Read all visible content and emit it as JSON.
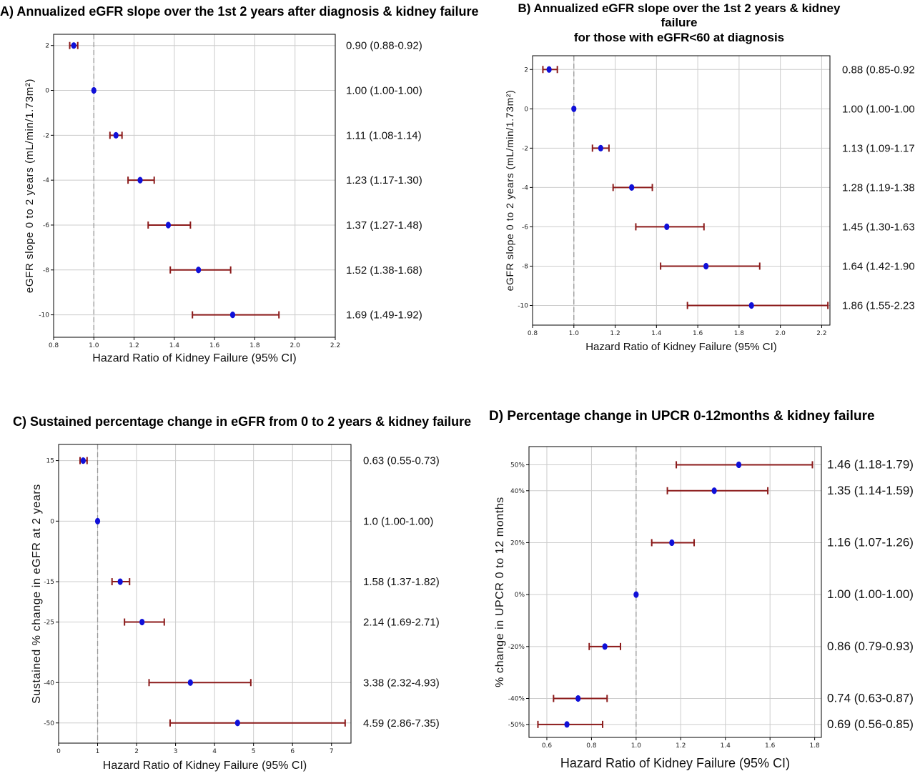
{
  "chart_data": [
    {
      "panel": "A",
      "type": "forest",
      "title": "A) Annualized eGFR slope over the 1st 2 years after diagnosis & kidney failure",
      "xlabel": "Hazard Ratio of Kidney Failure (95% CI)",
      "ylabel": "eGFR slope 0 to 2 years (mL/min/1.73m²)",
      "xlim": [
        0.8,
        2.2
      ],
      "xticks": [
        "0.8",
        "1.0",
        "1.2",
        "1.4",
        "1.6",
        "1.8",
        "2.0",
        "2.2"
      ],
      "ylim": [
        -11,
        2.5
      ],
      "reference_line": 1.0,
      "grid": true,
      "points": [
        {
          "y": 2,
          "ytick": "2",
          "hr": 0.9,
          "lo": 0.88,
          "hi": 0.92,
          "label": "0.90 (0.88-0.92)"
        },
        {
          "y": 0,
          "ytick": "0",
          "hr": 1.0,
          "lo": 1.0,
          "hi": 1.0,
          "label": "1.00 (1.00-1.00)"
        },
        {
          "y": -2,
          "ytick": "-2",
          "hr": 1.11,
          "lo": 1.08,
          "hi": 1.14,
          "label": "1.11 (1.08-1.14)"
        },
        {
          "y": -4,
          "ytick": "-4",
          "hr": 1.23,
          "lo": 1.17,
          "hi": 1.3,
          "label": "1.23 (1.17-1.30)"
        },
        {
          "y": -6,
          "ytick": "-6",
          "hr": 1.37,
          "lo": 1.27,
          "hi": 1.48,
          "label": "1.37 (1.27-1.48)"
        },
        {
          "y": -8,
          "ytick": "-8",
          "hr": 1.52,
          "lo": 1.38,
          "hi": 1.68,
          "label": "1.52 (1.38-1.68)"
        },
        {
          "y": -10,
          "ytick": "-10",
          "hr": 1.69,
          "lo": 1.49,
          "hi": 1.92,
          "label": "1.69 (1.49-1.92)"
        }
      ]
    },
    {
      "panel": "B",
      "type": "forest",
      "title": "B) Annualized eGFR slope over the 1st 2 years & kidney failure",
      "subtitle": "for those with eGFR<60 at diagnosis",
      "xlabel": "Hazard Ratio of Kidney Failure (95% CI)",
      "ylabel": "eGFR slope 0 to 2 years (mL/min/1.73m²)",
      "xlim": [
        0.8,
        2.24
      ],
      "xticks": [
        "0.8",
        "1.0",
        "1.2",
        "1.4",
        "1.6",
        "1.8",
        "2.0",
        "2.2"
      ],
      "ylim": [
        -11,
        2.7
      ],
      "reference_line": 1.0,
      "grid": true,
      "points": [
        {
          "y": 2,
          "ytick": "2",
          "hr": 0.88,
          "lo": 0.85,
          "hi": 0.92,
          "label": "0.88 (0.85-0.92)"
        },
        {
          "y": 0,
          "ytick": "0",
          "hr": 1.0,
          "lo": 1.0,
          "hi": 1.0,
          "label": "1.00 (1.00-1.00)"
        },
        {
          "y": -2,
          "ytick": "-2",
          "hr": 1.13,
          "lo": 1.09,
          "hi": 1.17,
          "label": "1.13 (1.09-1.17)"
        },
        {
          "y": -4,
          "ytick": "-4",
          "hr": 1.28,
          "lo": 1.19,
          "hi": 1.38,
          "label": "1.28 (1.19-1.38)"
        },
        {
          "y": -6,
          "ytick": "-6",
          "hr": 1.45,
          "lo": 1.3,
          "hi": 1.63,
          "label": "1.45 (1.30-1.63)"
        },
        {
          "y": -8,
          "ytick": "-8",
          "hr": 1.64,
          "lo": 1.42,
          "hi": 1.9,
          "label": "1.64 (1.42-1.90)"
        },
        {
          "y": -10,
          "ytick": "-10",
          "hr": 1.86,
          "lo": 1.55,
          "hi": 2.23,
          "label": "1.86 (1.55-2.23)"
        }
      ]
    },
    {
      "panel": "C",
      "type": "forest",
      "title": "C) Sustained percentage change in eGFR from 0 to 2 years & kidney failure",
      "xlabel": "Hazard Ratio of Kidney Failure (95% CI)",
      "ylabel": "Sustained % change in eGFR at 2 years",
      "xlim": [
        0,
        7.5
      ],
      "xticks": [
        "0",
        "1",
        "2",
        "3",
        "4",
        "5",
        "6",
        "7"
      ],
      "ylim": [
        -55,
        19
      ],
      "reference_line": 1.0,
      "grid": true,
      "points": [
        {
          "y": 15,
          "ytick": "15",
          "hr": 0.63,
          "lo": 0.55,
          "hi": 0.73,
          "label": "0.63 (0.55-0.73)"
        },
        {
          "y": 0,
          "ytick": "0",
          "hr": 1.0,
          "lo": 1.0,
          "hi": 1.0,
          "label": "1.0 (1.00-1.00)"
        },
        {
          "y": -15,
          "ytick": "-15",
          "hr": 1.58,
          "lo": 1.37,
          "hi": 1.82,
          "label": "1.58 (1.37-1.82)"
        },
        {
          "y": -25,
          "ytick": "-25",
          "hr": 2.14,
          "lo": 1.69,
          "hi": 2.71,
          "label": "2.14 (1.69-2.71)"
        },
        {
          "y": -40,
          "ytick": "-40",
          "hr": 3.38,
          "lo": 2.32,
          "hi": 4.93,
          "label": "3.38 (2.32-4.93)"
        },
        {
          "y": -50,
          "ytick": "-50",
          "hr": 4.59,
          "lo": 2.86,
          "hi": 7.35,
          "label": "4.59 (2.86-7.35)"
        }
      ]
    },
    {
      "panel": "D",
      "type": "forest",
      "title": "D) Percentage change in UPCR 0-12months & kidney failure",
      "xlabel": "Hazard Ratio of Kidney Failure (95% CI)",
      "ylabel": "% change in UPCR 0 to 12 months",
      "xlim": [
        0.52,
        1.83
      ],
      "xticks": [
        "0.6",
        "0.8",
        "1.0",
        "1.2",
        "1.4",
        "1.6",
        "1.8"
      ],
      "ylim": [
        -55,
        57
      ],
      "reference_line": 1.0,
      "grid": true,
      "points": [
        {
          "y": 50,
          "ytick": "50%",
          "hr": 1.46,
          "lo": 1.18,
          "hi": 1.79,
          "label": "1.46 (1.18-1.79)"
        },
        {
          "y": 40,
          "ytick": "40%",
          "hr": 1.35,
          "lo": 1.14,
          "hi": 1.59,
          "label": "1.35 (1.14-1.59)"
        },
        {
          "y": 20,
          "ytick": "20%",
          "hr": 1.16,
          "lo": 1.07,
          "hi": 1.26,
          "label": "1.16 (1.07-1.26)"
        },
        {
          "y": 0,
          "ytick": "0%",
          "hr": 1.0,
          "lo": 1.0,
          "hi": 1.0,
          "label": "1.00 (1.00-1.00)"
        },
        {
          "y": -20,
          "ytick": "-20%",
          "hr": 0.86,
          "lo": 0.79,
          "hi": 0.93,
          "label": "0.86 (0.79-0.93)"
        },
        {
          "y": -40,
          "ytick": "-40%",
          "hr": 0.74,
          "lo": 0.63,
          "hi": 0.87,
          "label": "0.74 (0.63-0.87)"
        },
        {
          "y": -50,
          "ytick": "-50%",
          "hr": 0.69,
          "lo": 0.56,
          "hi": 0.85,
          "label": "0.69 (0.56-0.85)"
        }
      ]
    }
  ],
  "colors": {
    "point": "#1010d8",
    "ci": "#8b1a1a",
    "grid": "#cccccc",
    "reference": "#999999",
    "frame": "#000000"
  }
}
